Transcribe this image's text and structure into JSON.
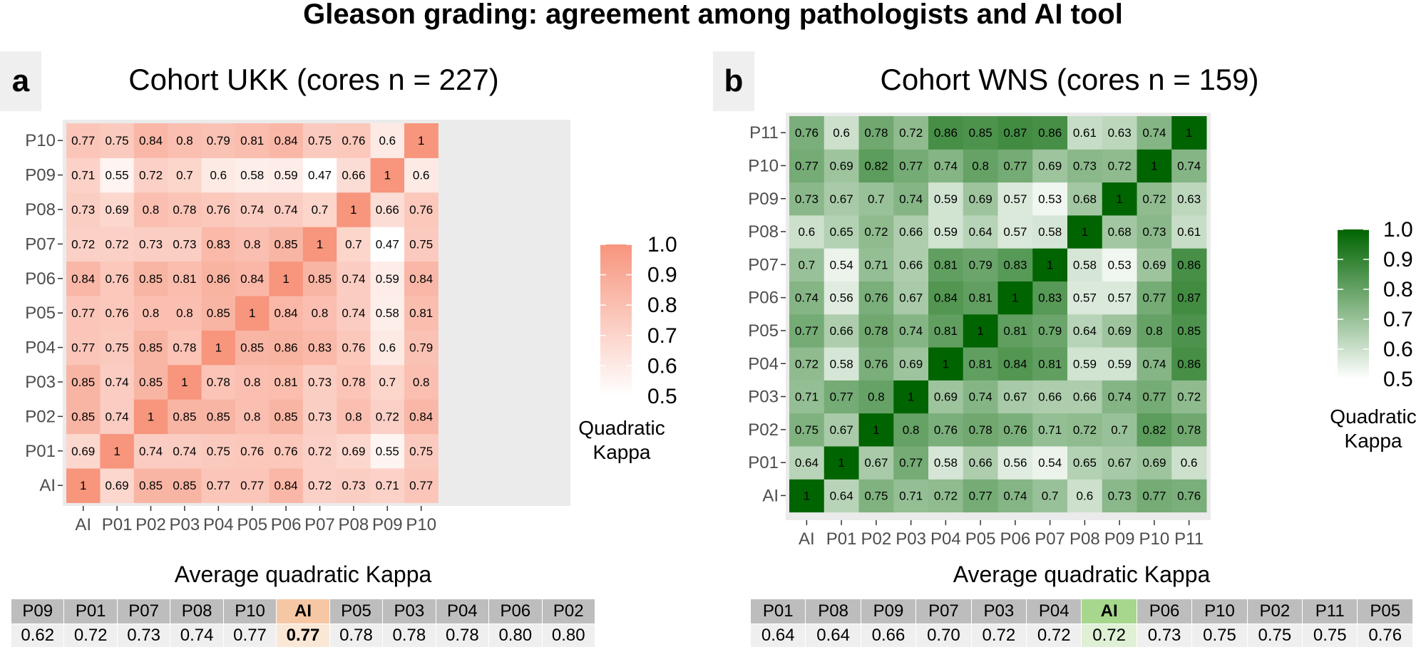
{
  "main_title": "Gleason grading: agreement among pathologists and AI tool",
  "panels": [
    {
      "letter": "a",
      "title": "Cohort UKK (cores n = 227)"
    },
    {
      "letter": "b",
      "title": "Cohort WNS (cores n = 159)"
    }
  ],
  "average_title": "Average quadratic Kappa",
  "chart_data": [
    {
      "type": "heatmap",
      "title": "Cohort UKK (cores n = 227)",
      "x": [
        "AI",
        "P01",
        "P02",
        "P03",
        "P04",
        "P05",
        "P06",
        "P07",
        "P08",
        "P09",
        "P10"
      ],
      "y": [
        "AI",
        "P01",
        "P02",
        "P03",
        "P04",
        "P05",
        "P06",
        "P07",
        "P08",
        "P09",
        "P10"
      ],
      "values": [
        [
          1,
          0.69,
          0.85,
          0.85,
          0.77,
          0.77,
          0.84,
          0.72,
          0.73,
          0.71,
          0.77
        ],
        [
          0.69,
          1,
          0.74,
          0.74,
          0.75,
          0.76,
          0.76,
          0.72,
          0.69,
          0.55,
          0.75
        ],
        [
          0.85,
          0.74,
          1,
          0.85,
          0.85,
          0.8,
          0.85,
          0.73,
          0.8,
          0.72,
          0.84
        ],
        [
          0.85,
          0.74,
          0.85,
          1,
          0.78,
          0.8,
          0.81,
          0.73,
          0.78,
          0.7,
          0.8
        ],
        [
          0.77,
          0.75,
          0.85,
          0.78,
          1,
          0.85,
          0.86,
          0.83,
          0.76,
          0.6,
          0.79
        ],
        [
          0.77,
          0.76,
          0.8,
          0.8,
          0.85,
          1,
          0.84,
          0.8,
          0.74,
          0.58,
          0.81
        ],
        [
          0.84,
          0.76,
          0.85,
          0.81,
          0.86,
          0.84,
          1,
          0.85,
          0.74,
          0.59,
          0.84
        ],
        [
          0.72,
          0.72,
          0.73,
          0.73,
          0.83,
          0.8,
          0.85,
          1,
          0.7,
          0.47,
          0.75
        ],
        [
          0.73,
          0.69,
          0.8,
          0.78,
          0.76,
          0.74,
          0.74,
          0.7,
          1,
          0.66,
          0.76
        ],
        [
          0.71,
          0.55,
          0.72,
          0.7,
          0.6,
          0.58,
          0.59,
          0.47,
          0.66,
          1,
          0.6
        ],
        [
          0.77,
          0.75,
          0.84,
          0.8,
          0.79,
          0.81,
          0.84,
          0.75,
          0.76,
          0.6,
          1
        ]
      ],
      "legend": {
        "title": "Quadratic Kappa",
        "title_lines": [
          "Quadratic",
          "Kappa"
        ],
        "ticks": [
          "0.5",
          "0.6",
          "0.7",
          "0.8",
          "0.9",
          "1.0"
        ],
        "range": [
          0.5,
          1.0
        ]
      },
      "color_high": "#f7957d",
      "color_low": "#ffffff",
      "average": {
        "names": [
          "P09",
          "P01",
          "P07",
          "P08",
          "P10",
          "AI",
          "P05",
          "P03",
          "P04",
          "P06",
          "P02"
        ],
        "values": [
          "0.62",
          "0.72",
          "0.73",
          "0.74",
          "0.77",
          "0.77",
          "0.78",
          "0.78",
          "0.78",
          "0.80",
          "0.80"
        ],
        "highlight": "AI"
      }
    },
    {
      "type": "heatmap",
      "title": "Cohort WNS (cores n = 159)",
      "x": [
        "AI",
        "P01",
        "P02",
        "P03",
        "P04",
        "P05",
        "P06",
        "P07",
        "P08",
        "P09",
        "P10",
        "P11"
      ],
      "y": [
        "AI",
        "P01",
        "P02",
        "P03",
        "P04",
        "P05",
        "P06",
        "P07",
        "P08",
        "P09",
        "P10",
        "P11"
      ],
      "values": [
        [
          1,
          0.64,
          0.75,
          0.71,
          0.72,
          0.77,
          0.74,
          0.7,
          0.6,
          0.73,
          0.77,
          0.76
        ],
        [
          0.64,
          1,
          0.67,
          0.77,
          0.58,
          0.66,
          0.56,
          0.54,
          0.65,
          0.67,
          0.69,
          0.6
        ],
        [
          0.75,
          0.67,
          1,
          0.8,
          0.76,
          0.78,
          0.76,
          0.71,
          0.72,
          0.7,
          0.82,
          0.78
        ],
        [
          0.71,
          0.77,
          0.8,
          1,
          0.69,
          0.74,
          0.67,
          0.66,
          0.66,
          0.74,
          0.77,
          0.72
        ],
        [
          0.72,
          0.58,
          0.76,
          0.69,
          1,
          0.81,
          0.84,
          0.81,
          0.59,
          0.59,
          0.74,
          0.86
        ],
        [
          0.77,
          0.66,
          0.78,
          0.74,
          0.81,
          1,
          0.81,
          0.79,
          0.64,
          0.69,
          0.8,
          0.85
        ],
        [
          0.74,
          0.56,
          0.76,
          0.67,
          0.84,
          0.81,
          1,
          0.83,
          0.57,
          0.57,
          0.77,
          0.87
        ],
        [
          0.7,
          0.54,
          0.71,
          0.66,
          0.81,
          0.79,
          0.83,
          1,
          0.58,
          0.53,
          0.69,
          0.86
        ],
        [
          0.6,
          0.65,
          0.72,
          0.66,
          0.59,
          0.64,
          0.57,
          0.58,
          1,
          0.68,
          0.73,
          0.61
        ],
        [
          0.73,
          0.67,
          0.7,
          0.74,
          0.59,
          0.69,
          0.57,
          0.53,
          0.68,
          1,
          0.72,
          0.63
        ],
        [
          0.77,
          0.69,
          0.82,
          0.77,
          0.74,
          0.8,
          0.77,
          0.69,
          0.73,
          0.72,
          1,
          0.74
        ],
        [
          0.76,
          0.6,
          0.78,
          0.72,
          0.86,
          0.85,
          0.87,
          0.86,
          0.61,
          0.63,
          0.74,
          1
        ]
      ],
      "legend": {
        "title": "Quadratic Kappa",
        "title_lines": [
          "Quadratic",
          "Kappa"
        ],
        "ticks": [
          "0.5",
          "0.6",
          "0.7",
          "0.8",
          "0.9",
          "1.0"
        ],
        "range": [
          0.5,
          1.0
        ]
      },
      "color_high": "#006400",
      "color_low": "#ffffff",
      "average": {
        "names": [
          "P01",
          "P08",
          "P09",
          "P07",
          "P03",
          "P04",
          "AI",
          "P06",
          "P10",
          "P02",
          "P11",
          "P05"
        ],
        "values": [
          "0.64",
          "0.64",
          "0.66",
          "0.70",
          "0.72",
          "0.72",
          "0.72",
          "0.73",
          "0.75",
          "0.75",
          "0.75",
          "0.76"
        ],
        "highlight": "AI"
      }
    }
  ]
}
